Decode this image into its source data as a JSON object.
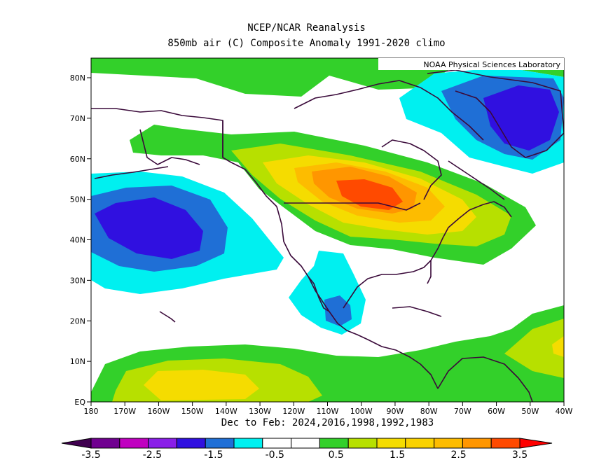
{
  "header": {
    "title_line1": "NCEP/NCAR Reanalysis",
    "title_line2": "850mb air (C) Composite Anomaly 1991-2020 climo",
    "credit": "NOAA Physical Sciences Laboratory"
  },
  "footer": {
    "caption": "Dec to Feb: 2024,2016,1998,1992,1983"
  },
  "map": {
    "lat_labels": [
      "80N",
      "70N",
      "60N",
      "50N",
      "40N",
      "30N",
      "20N",
      "10N",
      "EQ"
    ],
    "lon_labels": [
      "180",
      "170W",
      "160W",
      "150W",
      "140W",
      "130W",
      "120W",
      "110W",
      "100W",
      "90W",
      "80W",
      "70W",
      "60W",
      "50W",
      "40W"
    ]
  },
  "colorbar": {
    "labels": [
      "-3.5",
      "-2.5",
      "-1.5",
      "-0.5",
      "0.5",
      "1.5",
      "2.5",
      "3.5"
    ],
    "colors": [
      "#700090",
      "#c000c0",
      "#8a1ee8",
      "#3010e0",
      "#1f6fd6",
      "#00f0f0",
      "#ffffff",
      "#ffffff",
      "#33d02a",
      "#b7e000",
      "#f5dc00",
      "#fad200",
      "#fdbc00",
      "#ff9600",
      "#ff4a00"
    ],
    "low_arrow_color": "#400050",
    "high_arrow_color": "#ff0000"
  },
  "palette": {
    "neg_light": "#00f0f0",
    "neg_mid": "#1f6fd6",
    "neg_strong": "#3010e0",
    "pos_light": "#33d02a",
    "pos_mid": "#b7e000",
    "pos_strong": "#f5dc00",
    "pos_stronger": "#fdbc00",
    "pos_hot": "#ff9600",
    "pos_hottest": "#ff4a00",
    "coast": "#3a0a3a"
  }
}
